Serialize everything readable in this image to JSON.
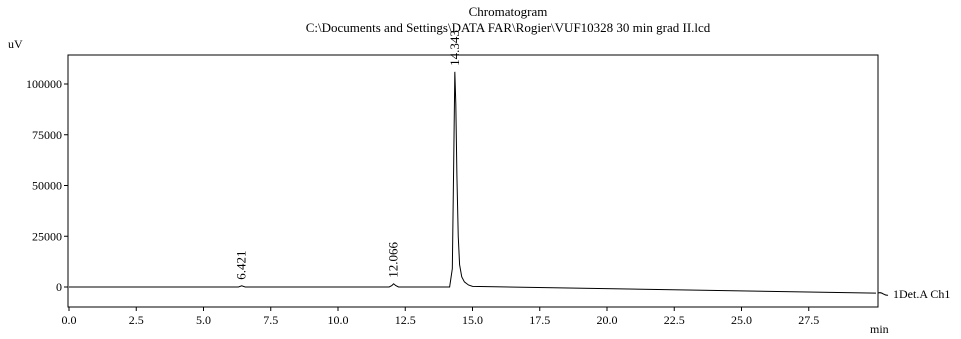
{
  "chart_data": {
    "type": "line",
    "title": "Chromatogram",
    "subtitle": "C:\\Documents and Settings\\DATA FAR\\Rogier\\VUF10328 30 min grad II.lcd",
    "ylabel": "uV",
    "xlabel": "min",
    "xlim": [
      0,
      30
    ],
    "ylim": [
      -4000,
      112000
    ],
    "x_ticks": [
      "0.0",
      "2.5",
      "5.0",
      "7.5",
      "10.0",
      "12.5",
      "15.0",
      "17.5",
      "20.0",
      "22.5",
      "25.0",
      "27.5"
    ],
    "x_tick_values": [
      0,
      2.5,
      5,
      7.5,
      10,
      12.5,
      15,
      17.5,
      20,
      22.5,
      25,
      27.5
    ],
    "y_ticks": [
      "0",
      "25000",
      "50000",
      "75000",
      "100000"
    ],
    "y_tick_values": [
      0,
      25000,
      50000,
      75000,
      100000
    ],
    "series": [
      {
        "name": "1Det.A Ch1",
        "color": "#000000",
        "x": [
          0,
          6.3,
          6.421,
          6.55,
          11.9,
          12.0,
          12.066,
          12.15,
          12.25,
          14.15,
          14.25,
          14.3,
          14.343,
          14.38,
          14.42,
          14.47,
          14.52,
          14.6,
          14.7,
          14.85,
          15.0,
          30
        ],
        "y": [
          0,
          0,
          600,
          0,
          0,
          700,
          1600,
          700,
          0,
          0,
          9000,
          60000,
          106000,
          90000,
          55000,
          25000,
          11000,
          5000,
          2500,
          1000,
          300,
          -3000
        ]
      }
    ],
    "peak_labels": [
      {
        "x": 6.421,
        "y": 600,
        "text": "6.421"
      },
      {
        "x": 12.066,
        "y": 1600,
        "text": "12.066"
      },
      {
        "x": 14.343,
        "y": 106000,
        "text": "14.343"
      }
    ],
    "grid": false
  }
}
